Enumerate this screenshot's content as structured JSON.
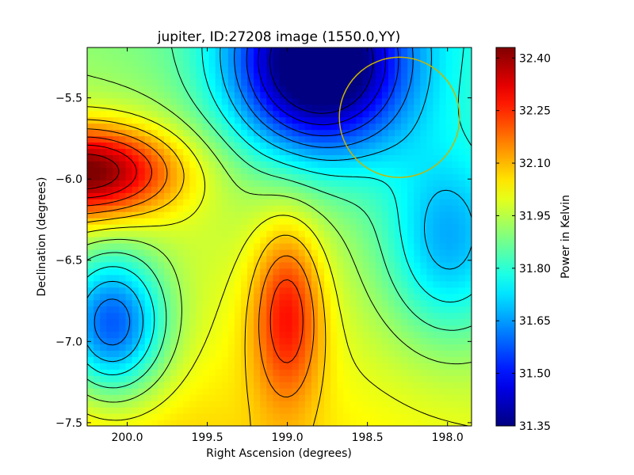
{
  "chart_data": {
    "type": "heatmap",
    "title": "jupiter, ID:27208 image (1550.0,YY)",
    "xlabel": "Right Ascension (degrees)",
    "ylabel": "Declination (degrees)",
    "xlim": [
      200.25,
      197.85
    ],
    "ylim": [
      -7.52,
      -5.19
    ],
    "xticks": [
      {
        "value": 200.0,
        "label": "200.0"
      },
      {
        "value": 199.5,
        "label": "199.5"
      },
      {
        "value": 199.0,
        "label": "199.0"
      },
      {
        "value": 198.5,
        "label": "198.5"
      },
      {
        "value": 198.0,
        "label": "198.0"
      }
    ],
    "yticks": [
      {
        "value": -5.5,
        "label": "−5.5"
      },
      {
        "value": -6.0,
        "label": "−6.0"
      },
      {
        "value": -6.5,
        "label": "−6.5"
      },
      {
        "value": -7.0,
        "label": "−7.0"
      },
      {
        "value": -7.5,
        "label": "−7.5"
      }
    ],
    "colormap": "jet",
    "colorbar": {
      "label": "Power in Kelvin",
      "range": [
        31.35,
        32.43
      ],
      "ticks": [
        {
          "value": 32.4,
          "label": "32.40"
        },
        {
          "value": 32.25,
          "label": "32.25"
        },
        {
          "value": 32.1,
          "label": "32.10"
        },
        {
          "value": 31.95,
          "label": "31.95"
        },
        {
          "value": 31.8,
          "label": "31.80"
        },
        {
          "value": 31.65,
          "label": "31.65"
        },
        {
          "value": 31.5,
          "label": "31.50"
        },
        {
          "value": 31.35,
          "label": "31.35"
        }
      ]
    },
    "contour_color": "#000000",
    "features": [
      {
        "kind": "maximum",
        "ra": 200.25,
        "dec": -5.95,
        "value": 32.43
      },
      {
        "kind": "local-maximum",
        "ra": 199.0,
        "dec": -6.82,
        "value": 32.2
      },
      {
        "kind": "minimum",
        "ra": 198.8,
        "dec": -5.3,
        "value": 31.36
      },
      {
        "kind": "local-minimum",
        "ra": 200.1,
        "dec": -6.9,
        "value": 31.6
      }
    ],
    "overlay_circle": {
      "ra": 198.3,
      "dec": -5.62,
      "radius_deg": 0.37,
      "color": "#c8b400"
    }
  }
}
